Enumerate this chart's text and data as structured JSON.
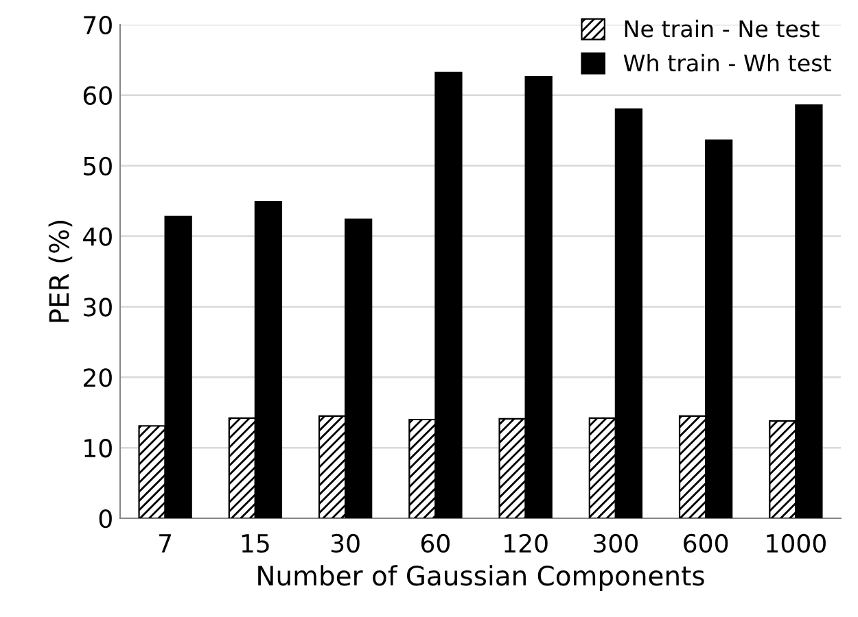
{
  "chart_data": {
    "type": "bar",
    "xlabel": "Number of Gaussian Components",
    "ylabel": "PER (%)",
    "categories": [
      "7",
      "15",
      "30",
      "60",
      "120",
      "300",
      "600",
      "1000"
    ],
    "series": [
      {
        "name": "Ne train - Ne test",
        "color": "#000000",
        "values": [
          13.1,
          14.2,
          14.5,
          14.0,
          14.1,
          14.2,
          14.5,
          13.8
        ]
      },
      {
        "name": "Wh train - Wh test",
        "color": "#000000",
        "values": [
          42.8,
          44.9,
          42.4,
          63.2,
          62.6,
          58.0,
          53.6,
          58.6
        ]
      }
    ],
    "ylim": [
      0,
      70
    ],
    "yticks": [
      0,
      10,
      20,
      30,
      40,
      50,
      60,
      70
    ],
    "grid": "y",
    "legend": "top right"
  }
}
